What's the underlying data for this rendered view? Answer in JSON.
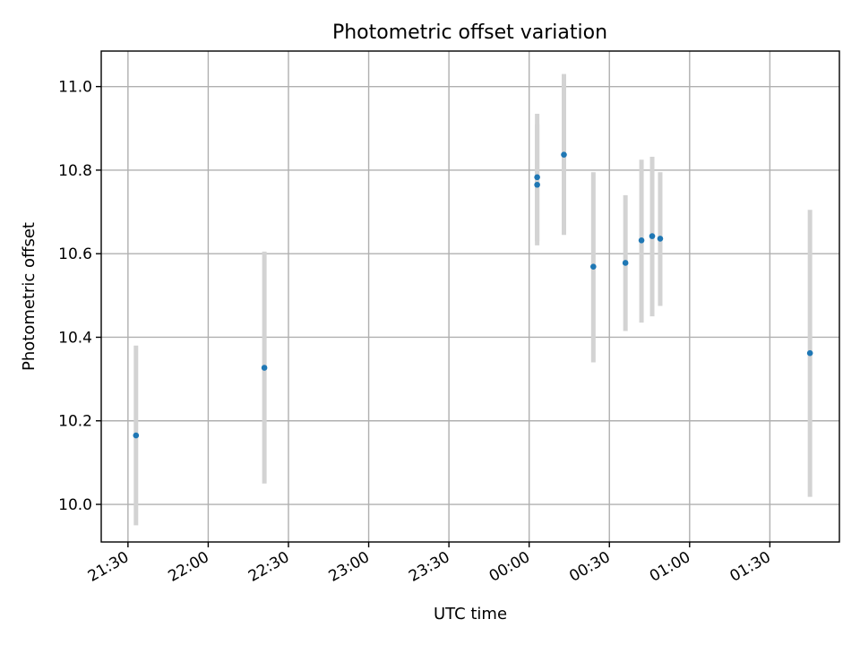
{
  "chart_data": {
    "type": "scatter",
    "title": "Photometric offset variation",
    "xlabel": "UTC time",
    "ylabel": "Photometric offset",
    "x_ticks": [
      "21:30",
      "22:00",
      "22:30",
      "23:00",
      "23:30",
      "00:00",
      "00:30",
      "01:00",
      "01:30"
    ],
    "y_ticks": [
      "10.0",
      "10.2",
      "10.4",
      "10.6",
      "10.8",
      "11.0"
    ],
    "xlim": [
      "21:20",
      "01:56"
    ],
    "ylim": [
      9.91,
      11.085
    ],
    "grid": true,
    "colors": {
      "points": "#1f77b4",
      "errorbars": "#d3d3d3"
    },
    "points": [
      {
        "x": "21:33",
        "y": 10.165,
        "err_low": 9.95,
        "err_high": 10.38
      },
      {
        "x": "22:21",
        "y": 10.327,
        "err_low": 10.05,
        "err_high": 10.605
      },
      {
        "x": "00:03",
        "y": 10.765,
        "err_low": 10.62,
        "err_high": 10.91
      },
      {
        "x": "00:03",
        "y": 10.783,
        "err_low": 10.63,
        "err_high": 10.935
      },
      {
        "x": "00:13",
        "y": 10.837,
        "err_low": 10.645,
        "err_high": 11.03
      },
      {
        "x": "00:24",
        "y": 10.569,
        "err_low": 10.34,
        "err_high": 10.795
      },
      {
        "x": "00:36",
        "y": 10.578,
        "err_low": 10.415,
        "err_high": 10.74
      },
      {
        "x": "00:42",
        "y": 10.632,
        "err_low": 10.435,
        "err_high": 10.825
      },
      {
        "x": "00:46",
        "y": 10.642,
        "err_low": 10.45,
        "err_high": 10.832
      },
      {
        "x": "00:49",
        "y": 10.636,
        "err_low": 10.475,
        "err_high": 10.795
      },
      {
        "x": "01:45",
        "y": 10.362,
        "err_low": 10.018,
        "err_high": 10.705
      }
    ]
  }
}
